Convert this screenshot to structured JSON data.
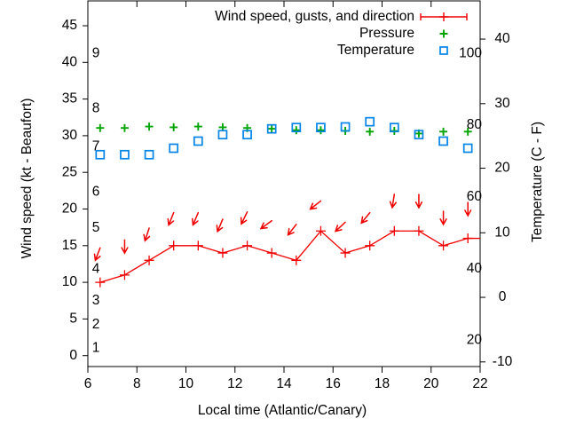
{
  "chart_data": {
    "type": "line",
    "title": "",
    "xlabel": "Local time (Atlantic/Canary)",
    "xlim": [
      6,
      22
    ],
    "x_ticks": [
      6,
      8,
      10,
      12,
      14,
      16,
      18,
      20,
      22
    ],
    "left_axis": {
      "label": "Wind speed (kt - Beaufort)",
      "ticks_kt": [
        0,
        5,
        10,
        15,
        20,
        25,
        30,
        35,
        40,
        45
      ],
      "beaufort_inner_labels": [
        {
          "label": "1",
          "kt": 1.0
        },
        {
          "label": "2",
          "kt": 4.2
        },
        {
          "label": "3",
          "kt": 7.5
        },
        {
          "label": "4",
          "kt": 11.8
        },
        {
          "label": "5",
          "kt": 17.4
        },
        {
          "label": "6",
          "kt": 22.3
        },
        {
          "label": "7",
          "kt": 28.5
        },
        {
          "label": "8",
          "kt": 33.7
        },
        {
          "label": "9",
          "kt": 41.2
        }
      ]
    },
    "right_axis": {
      "label": "Temperature (C - F)",
      "ticks_c": [
        -10,
        0,
        10,
        20,
        30,
        40
      ],
      "fahrenheit_inner_labels": [
        20,
        40,
        60,
        80,
        100
      ]
    },
    "legend": [
      {
        "label": "Wind speed, gusts, and direction",
        "marker": "errorbar-line-plus",
        "color": "#ef0000"
      },
      {
        "label": "Pressure",
        "marker": "plus",
        "color": "#00a400"
      },
      {
        "label": "Temperature",
        "marker": "open-square",
        "color": "#0084e8"
      }
    ],
    "x_hours": [
      6.5,
      7.5,
      8.5,
      9.5,
      10.5,
      11.5,
      12.5,
      13.5,
      14.5,
      15.5,
      16.5,
      17.5,
      18.5,
      19.5,
      20.5,
      21.5
    ],
    "series": [
      {
        "name": "Wind speed, gusts, and direction",
        "color": "#ef0000",
        "axis": "left-kt",
        "wind_kt": [
          10,
          11,
          13,
          15,
          15,
          14,
          15,
          14,
          13,
          17,
          14,
          15,
          17,
          17,
          15,
          16
        ],
        "line_end": {
          "hour": 22,
          "kt": 16
        },
        "gust_kt": [
          14.7,
          15.8,
          17.4,
          19.5,
          19.5,
          18.6,
          19.6,
          18.4,
          17.9,
          21.1,
          18.2,
          19.5,
          22.0,
          22.0,
          19.7,
          20.9
        ],
        "gust_dir_deg_screen": [
          201,
          180,
          198,
          202,
          203,
          203,
          206,
          234,
          218,
          232,
          227,
          219,
          189,
          180,
          180,
          180
        ]
      },
      {
        "name": "Pressure",
        "color": "#00a400",
        "axis": "left-kt",
        "values": [
          31.05,
          31.05,
          31.25,
          31.15,
          31.25,
          31.15,
          31.05,
          30.95,
          30.75,
          30.75,
          30.65,
          30.55,
          30.65,
          30.3,
          30.55,
          30.55
        ]
      },
      {
        "name": "Temperature",
        "color": "#0084e8",
        "axis": "right-celsius",
        "values_c": [
          22.1,
          22.1,
          22.1,
          23.1,
          24.2,
          25.2,
          25.2,
          26.1,
          26.3,
          26.3,
          26.4,
          27.2,
          26.3,
          25.2,
          24.2,
          23.1
        ]
      }
    ],
    "colors": {
      "wind": "#ef0000",
      "pressure": "#00a400",
      "temperature": "#0084e8",
      "axis": "#000000"
    },
    "grid": false,
    "legend_position": "top-right-inside"
  }
}
